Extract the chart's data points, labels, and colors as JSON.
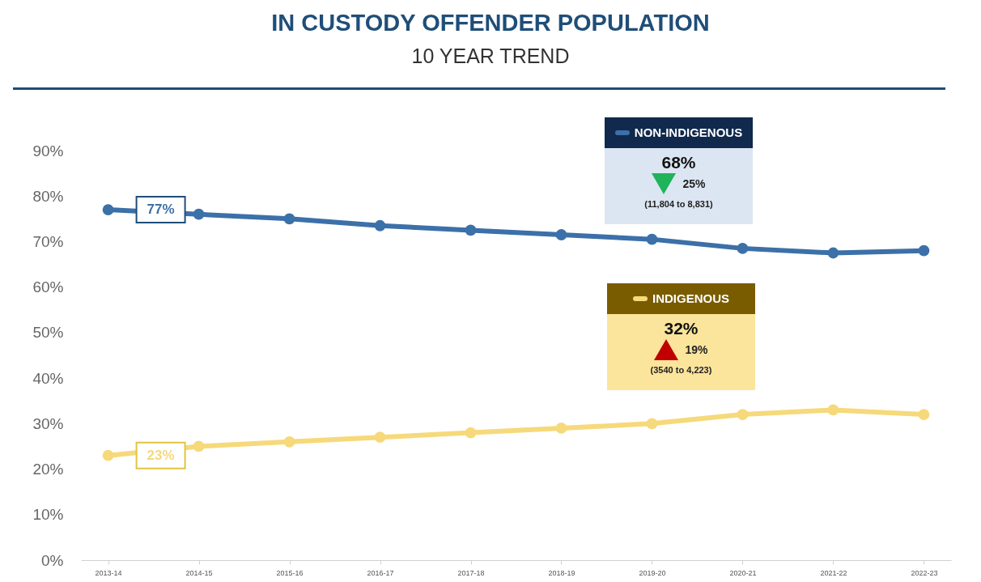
{
  "chart_data": {
    "type": "line",
    "title": "IN CUSTODY OFFENDER POPULATION",
    "subtitle": "10 YEAR TREND",
    "categories": [
      "2013-14",
      "2014-15",
      "2015-16",
      "2016-17",
      "2017-18",
      "2018-19",
      "2019-20",
      "2020-21",
      "2021-22",
      "2022-23"
    ],
    "series": [
      {
        "name": "NON-INDIGENOUS",
        "color": "#3c70a8",
        "values": [
          77,
          76,
          75,
          73.5,
          72.5,
          71.5,
          70.5,
          68.5,
          67.5,
          68
        ]
      },
      {
        "name": "INDIGENOUS",
        "color": "#f6d97a",
        "values": [
          23,
          25,
          26,
          27,
          28,
          29,
          30,
          32,
          33,
          32
        ]
      }
    ],
    "ylim": [
      0,
      90
    ],
    "yticks": [
      {
        "value": 0,
        "label": "0%"
      },
      {
        "value": 10,
        "label": "10%"
      },
      {
        "value": 20,
        "label": "20%"
      },
      {
        "value": 30,
        "label": "30%"
      },
      {
        "value": 40,
        "label": "40%"
      },
      {
        "value": 50,
        "label": "50%"
      },
      {
        "value": 60,
        "label": "60%"
      },
      {
        "value": 70,
        "label": "70%"
      },
      {
        "value": 80,
        "label": "80%"
      },
      {
        "value": 90,
        "label": "90%"
      }
    ],
    "grid": false,
    "legend": "top right",
    "marker": "circle",
    "line_style": "solid",
    "annotations": [
      {
        "text": "77%",
        "x": "2013-14",
        "y": 77
      },
      {
        "text": "23%",
        "x": "2013-14",
        "y": 23
      },
      "68%",
      "25%",
      "(11,804 to 8,831)",
      "32%",
      "19%",
      "(3540 to 4,223)"
    ]
  }
}
